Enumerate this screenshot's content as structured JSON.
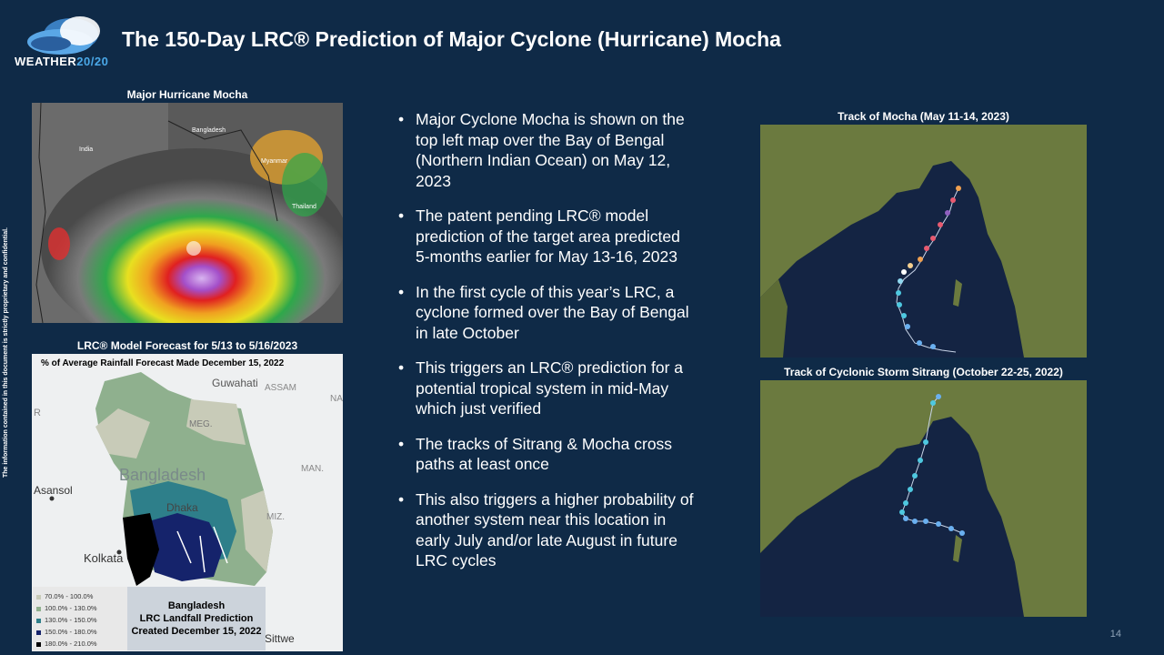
{
  "header": {
    "logo_text_a": "WEATHER",
    "logo_text_b": "20/20",
    "title": "The 150-Day LRC® Prediction of Major Cyclone (Hurricane) Mocha"
  },
  "side_note": "The information contained in this document is strictly proprietary and confidential.",
  "left": {
    "sat_caption": "Major Hurricane Mocha",
    "sat_labels": {
      "india": "India",
      "bangladesh": "Bangladesh",
      "myanmar": "Myanmar",
      "thailand": "Thailand"
    },
    "forecast_caption": "LRC® Model Forecast for 5/13 to 5/16/2023",
    "forecast_subtitle": "% of Average Rainfall Forecast Made December 15, 2022",
    "map_labels": {
      "guwahati": "Guwahati",
      "assam": "ASSAM",
      "meg": "MEG.",
      "bangladesh": "Bangladesh",
      "dhaka": "Dhaka",
      "man": "MAN.",
      "asansol": "Asansol",
      "miz": "MIZ.",
      "kolkata": "Kolkata",
      "sittwe": "Sittwe",
      "r": "R",
      "na": "NA"
    },
    "legend": [
      {
        "label": "70.0% - 100.0%",
        "color": "#c8cbb8"
      },
      {
        "label": "100.0% - 130.0%",
        "color": "#8fb08e"
      },
      {
        "label": "130.0% - 150.0%",
        "color": "#2e7f8a"
      },
      {
        "label": "150.0% - 180.0%",
        "color": "#15236b"
      },
      {
        "label": "180.0% - 210.0%",
        "color": "#000000"
      }
    ],
    "legend_box": {
      "line1": "Bangladesh",
      "line2": "LRC Landfall Prediction",
      "line3": "Created December 15, 2022"
    }
  },
  "bullets": [
    "Major Cyclone Mocha is shown on the top left map over the Bay of Bengal (Northern Indian Ocean) on May 12, 2023",
    "The patent pending LRC® model prediction of the target area predicted 5-months earlier for May 13-16, 2023",
    "In the first cycle of this year’s LRC, a cyclone formed over the Bay of Bengal in late October",
    "This triggers an LRC® prediction for a potential tropical system in mid-May which just verified",
    "The tracks of Sitrang & Mocha cross paths at least once",
    "This also triggers a higher probability of another system near this location in early July and/or late August in future LRC cycles"
  ],
  "right": {
    "mocha_caption": "Track of Mocha (May 11-14, 2023)",
    "sitrang_caption": "Track of Cyclonic Storm Sitrang (October 22-25, 2022)"
  },
  "page_number": "14",
  "colors": {
    "background": "#0f2a47",
    "ocean": "#142443",
    "land": "#6b7a3f"
  }
}
